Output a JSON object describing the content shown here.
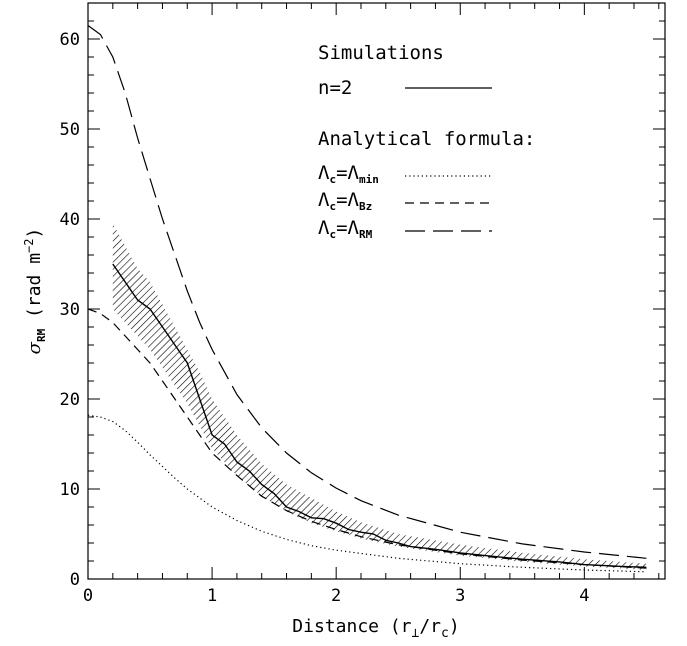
{
  "chart_data": {
    "type": "line",
    "xlabel": "Distance (r⊥/rc)",
    "ylabel": "σRM (rad m⁻²)",
    "xlim": [
      0,
      4.65
    ],
    "ylim": [
      0,
      64
    ],
    "xticks": [
      0,
      1,
      2,
      3,
      4
    ],
    "yticks": [
      0,
      10,
      20,
      30,
      40,
      50,
      60
    ],
    "grid": false,
    "legend_position": "top-right",
    "legend": {
      "group1_title": "Simulations",
      "group1_entry": "n=2",
      "group2_title": "Analytical formula:",
      "entries": [
        {
          "lhs": "Λ",
          "lhs_sub": "c",
          "eq": "=",
          "rhs": "Λ",
          "rhs_sub": "min",
          "style": "dotted"
        },
        {
          "lhs": "Λ",
          "lhs_sub": "c",
          "eq": "=",
          "rhs": "Λ",
          "rhs_sub": "Bz",
          "style": "short-dash"
        },
        {
          "lhs": "Λ",
          "lhs_sub": "c",
          "eq": "=",
          "rhs": "Λ",
          "rhs_sub": "RM",
          "style": "long-dash"
        }
      ]
    },
    "series": [
      {
        "name": "n=2",
        "style": "solid",
        "x": [
          0.2,
          0.3,
          0.4,
          0.5,
          0.6,
          0.7,
          0.8,
          0.9,
          1.0,
          1.1,
          1.2,
          1.3,
          1.4,
          1.5,
          1.6,
          1.7,
          1.8,
          1.9,
          2.0,
          2.1,
          2.2,
          2.3,
          2.4,
          2.5,
          2.6,
          2.8,
          3.0,
          3.2,
          3.5,
          3.8,
          4.0,
          4.3,
          4.5
        ],
        "y": [
          35,
          33,
          31,
          30,
          28,
          26,
          24,
          20,
          16,
          15,
          13,
          12,
          10.5,
          9.5,
          8,
          7.5,
          6.8,
          6.7,
          6.2,
          5.5,
          5.2,
          5.0,
          4.3,
          4.0,
          3.6,
          3.3,
          2.9,
          2.6,
          2.2,
          1.9,
          1.6,
          1.4,
          1.3
        ]
      },
      {
        "name": "Λc=ΛBz",
        "style": "short-dash",
        "x": [
          0,
          0.1,
          0.2,
          0.3,
          0.4,
          0.5,
          0.6,
          0.7,
          0.8,
          0.9,
          1.0,
          1.2,
          1.4,
          1.6,
          1.8,
          2.0,
          2.2,
          2.5,
          3.0,
          3.5,
          4.0,
          4.5
        ],
        "y": [
          30,
          29.5,
          28.5,
          27,
          25.5,
          24,
          22,
          20,
          18,
          16,
          14,
          11.5,
          9.2,
          7.6,
          6.4,
          5.5,
          4.7,
          3.8,
          2.8,
          2.1,
          1.6,
          1.2
        ]
      },
      {
        "name": "Λc=ΛRM",
        "style": "long-dash",
        "x": [
          0,
          0.1,
          0.2,
          0.3,
          0.4,
          0.5,
          0.6,
          0.7,
          0.8,
          0.9,
          1.0,
          1.2,
          1.4,
          1.6,
          1.8,
          2.0,
          2.2,
          2.5,
          3.0,
          3.5,
          4.0,
          4.5
        ],
        "y": [
          61.5,
          60.5,
          58,
          54,
          49,
          44.5,
          40,
          36,
          32,
          28.5,
          25.5,
          20.5,
          16.8,
          14,
          11.8,
          10.1,
          8.7,
          7.1,
          5.2,
          3.9,
          3.0,
          2.3
        ]
      },
      {
        "name": "Λc=Λmin",
        "style": "dotted",
        "x": [
          0,
          0.1,
          0.2,
          0.3,
          0.4,
          0.5,
          0.6,
          0.7,
          0.8,
          0.9,
          1.0,
          1.2,
          1.4,
          1.6,
          1.8,
          2.0,
          2.5,
          3.0,
          3.5,
          4.0,
          4.5
        ],
        "y": [
          18.2,
          18,
          17.5,
          16.5,
          15.2,
          13.8,
          12.5,
          11.2,
          10,
          9,
          8,
          6.5,
          5.3,
          4.4,
          3.7,
          3.2,
          2.3,
          1.7,
          1.3,
          1.0,
          0.8
        ]
      }
    ],
    "band": {
      "name": "n=2 spread",
      "x": [
        0.2,
        0.3,
        0.4,
        0.5,
        0.6,
        0.7,
        0.8,
        0.9,
        1.0,
        1.2,
        1.4,
        1.6,
        1.8,
        2.0,
        2.2,
        2.5,
        3.0,
        3.5,
        4.0,
        4.5
      ],
      "upper": [
        39.5,
        37,
        34.5,
        33,
        30.5,
        28,
        25.5,
        23,
        20,
        16,
        12.8,
        10.5,
        9,
        7.5,
        6.3,
        5.0,
        3.8,
        2.9,
        2.2,
        1.7
      ],
      "lower": [
        30,
        28.5,
        27,
        25.5,
        23.5,
        21.5,
        19.5,
        17,
        14.5,
        11.5,
        9.2,
        7.5,
        6.2,
        5.3,
        4.5,
        3.6,
        2.6,
        1.9,
        1.4,
        1.0
      ]
    }
  }
}
